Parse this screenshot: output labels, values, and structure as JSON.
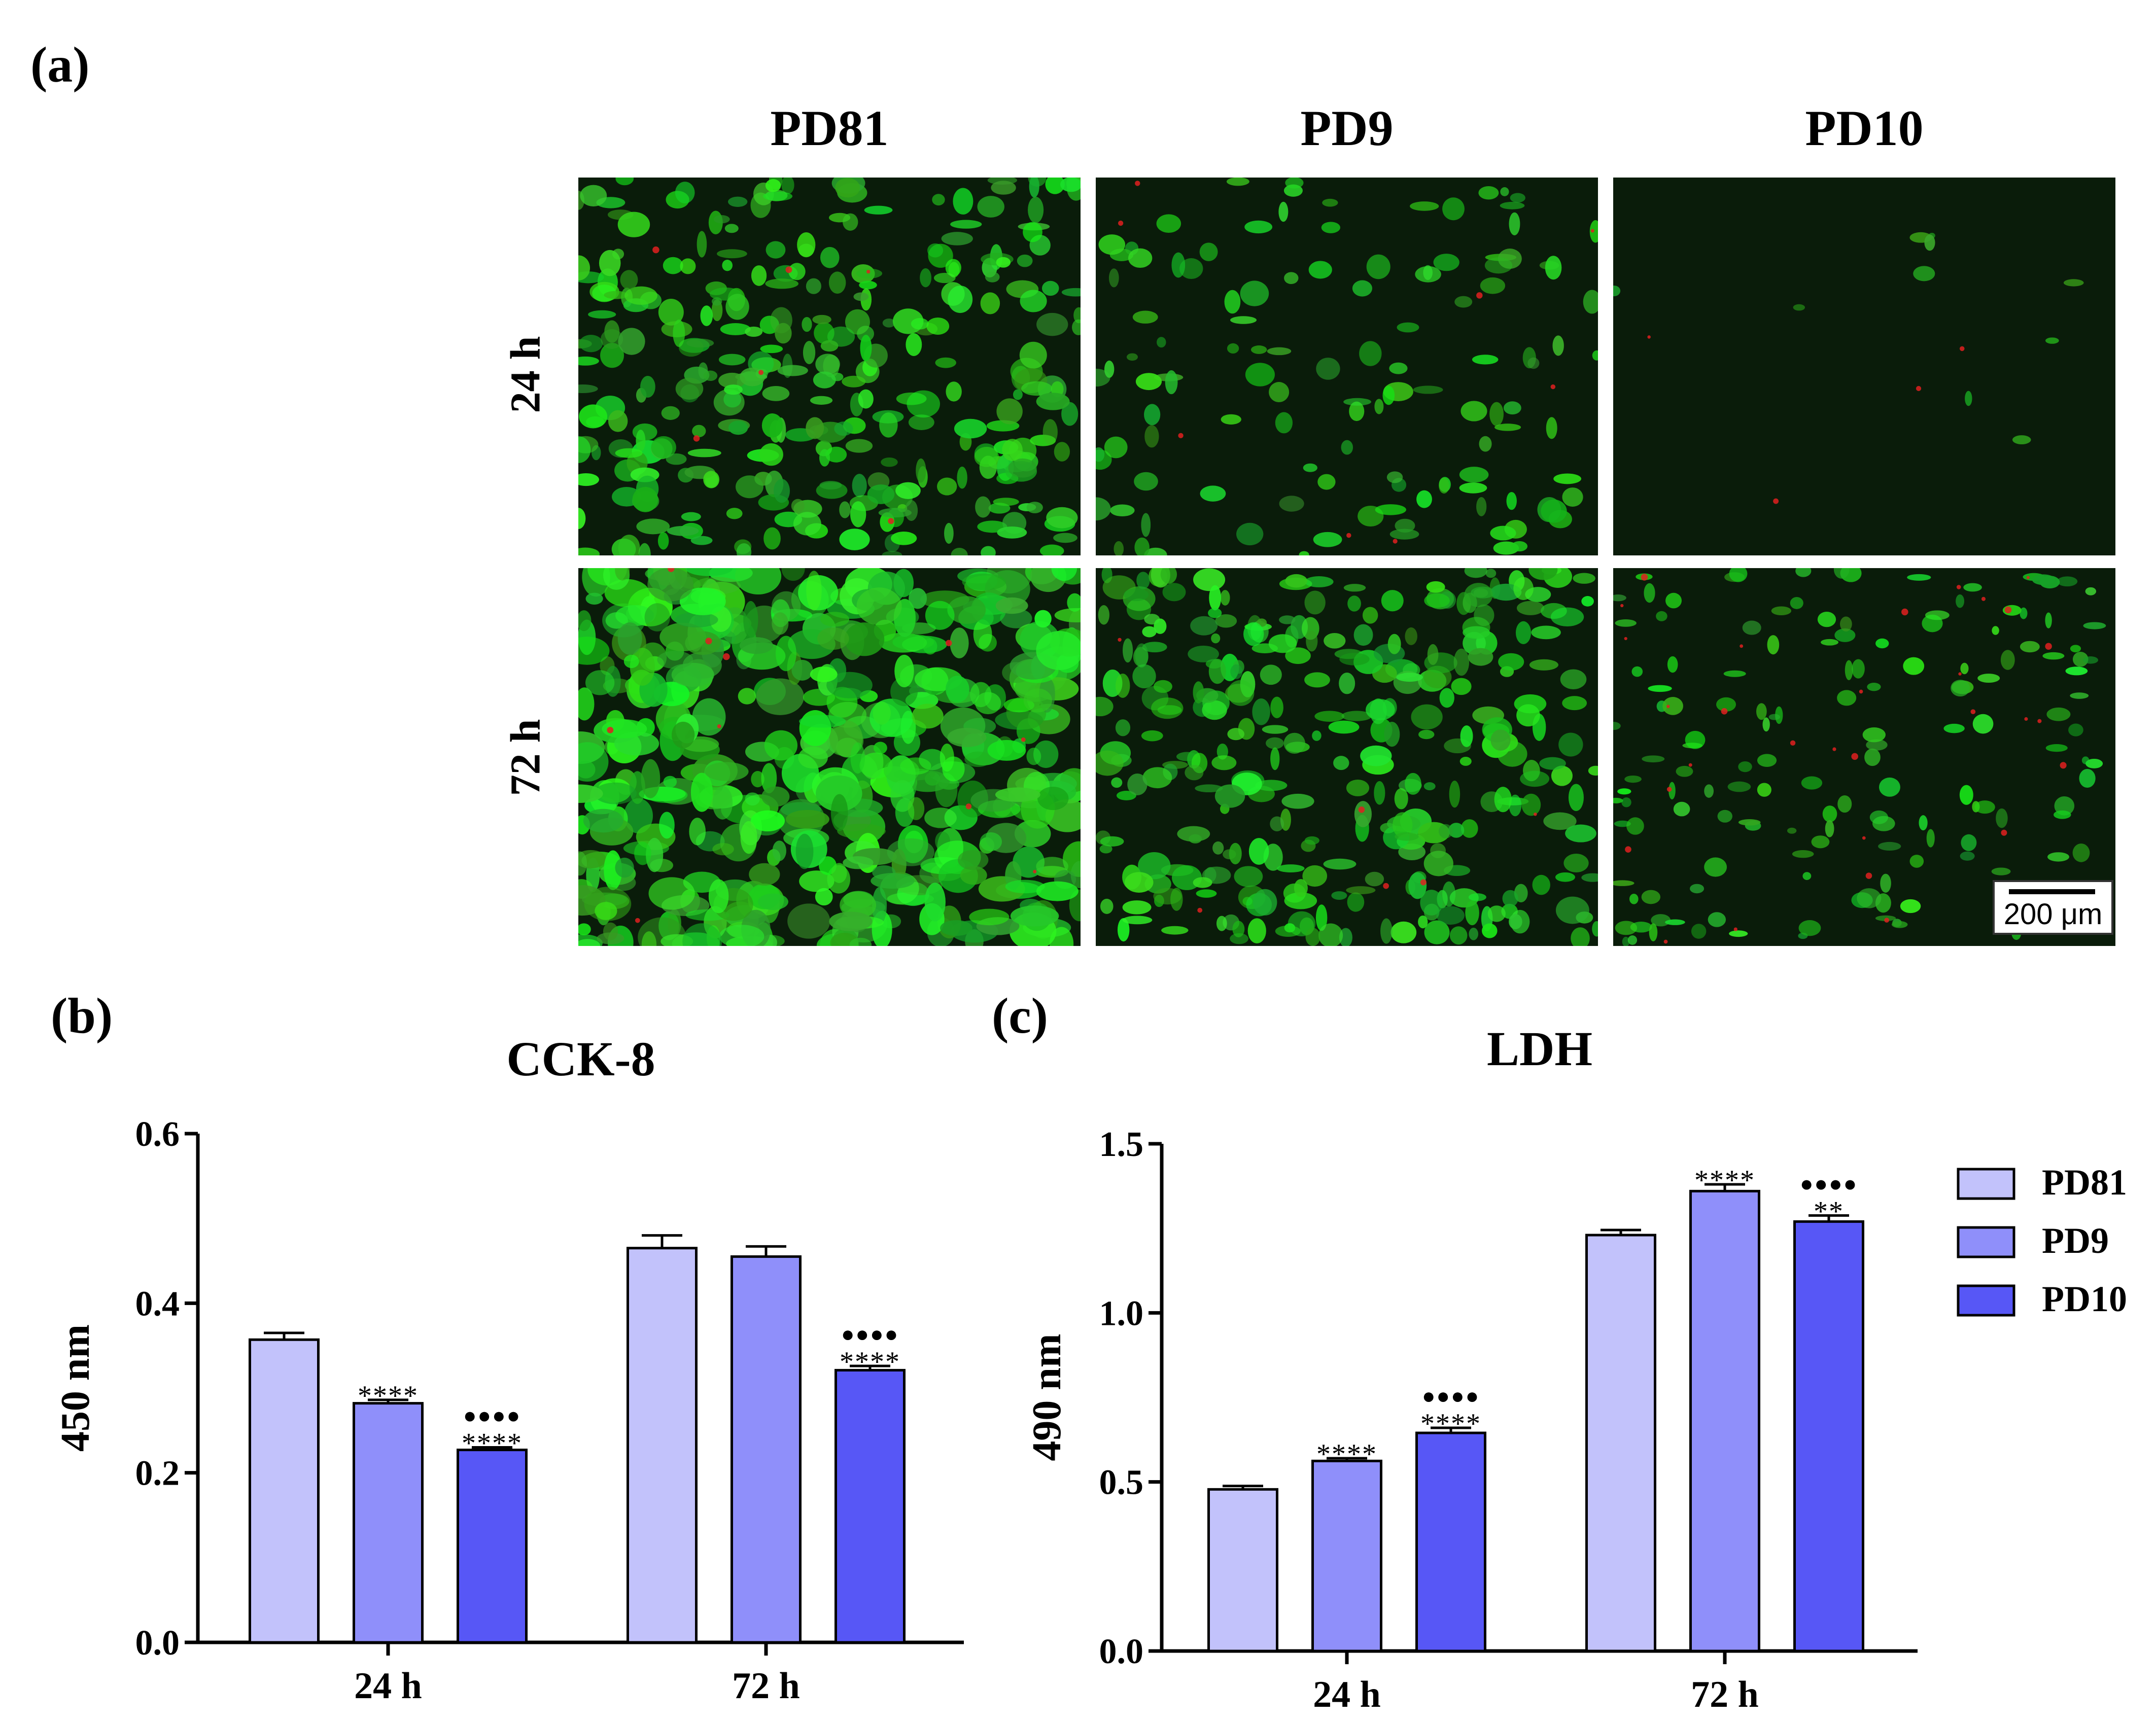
{
  "panel_labels": {
    "a": "(a)",
    "b": "(b)",
    "c": "(c)"
  },
  "micrograph_grid": {
    "columns": [
      "PD81",
      "PD9",
      "PD10"
    ],
    "rows": [
      "24 h",
      "72 h"
    ],
    "scale_bar": "200 μm"
  },
  "chart_data": [
    {
      "id": "cck8",
      "type": "bar",
      "title": "CCK-8",
      "xlabel": "",
      "ylabel": "450 nm",
      "categories": [
        "24 h",
        "72 h"
      ],
      "ylim": [
        0,
        0.6
      ],
      "yticks": [
        "0.0",
        "0.2",
        "0.4",
        "0.6"
      ],
      "series": [
        {
          "values": [
            0.357,
            0.465
          ],
          "errors": [
            0.008,
            0.015
          ],
          "color": "#c2c2fb"
        },
        {
          "values": [
            0.282,
            0.455
          ],
          "errors": [
            0.004,
            0.012
          ],
          "color": "#8f8ffa"
        },
        {
          "values": [
            0.227,
            0.321
          ],
          "errors": [
            0.003,
            0.005
          ],
          "color": "#5757f6"
        }
      ],
      "annotations": [
        {
          "category": 0,
          "series": 1,
          "lines": [
            "****"
          ]
        },
        {
          "category": 0,
          "series": 2,
          "lines": [
            "●●●●",
            "****"
          ]
        },
        {
          "category": 1,
          "series": 2,
          "lines": [
            "●●●●",
            "****"
          ]
        }
      ]
    },
    {
      "id": "ldh",
      "type": "bar",
      "title": "LDH",
      "xlabel": "",
      "ylabel": "490 nm",
      "categories": [
        "24 h",
        "72 h"
      ],
      "ylim": [
        0,
        1.5
      ],
      "yticks": [
        "0.0",
        "0.5",
        "1.0",
        "1.5"
      ],
      "series": [
        {
          "name": "PD81",
          "values": [
            0.478,
            1.23
          ],
          "errors": [
            0.01,
            0.015
          ],
          "color": "#c2c2fb"
        },
        {
          "name": "PD9",
          "values": [
            0.562,
            1.36
          ],
          "errors": [
            0.008,
            0.02
          ],
          "color": "#8f8ffa"
        },
        {
          "name": "PD10",
          "values": [
            0.645,
            1.27
          ],
          "errors": [
            0.015,
            0.018
          ],
          "color": "#5757f6"
        }
      ],
      "legend": "right",
      "annotations": [
        {
          "category": 0,
          "series": 1,
          "lines": [
            "****"
          ]
        },
        {
          "category": 0,
          "series": 2,
          "lines": [
            "●●●●",
            "****"
          ]
        },
        {
          "category": 1,
          "series": 1,
          "lines": [
            "****"
          ]
        },
        {
          "category": 1,
          "series": 2,
          "lines": [
            "●●●●",
            "**"
          ]
        }
      ]
    }
  ]
}
